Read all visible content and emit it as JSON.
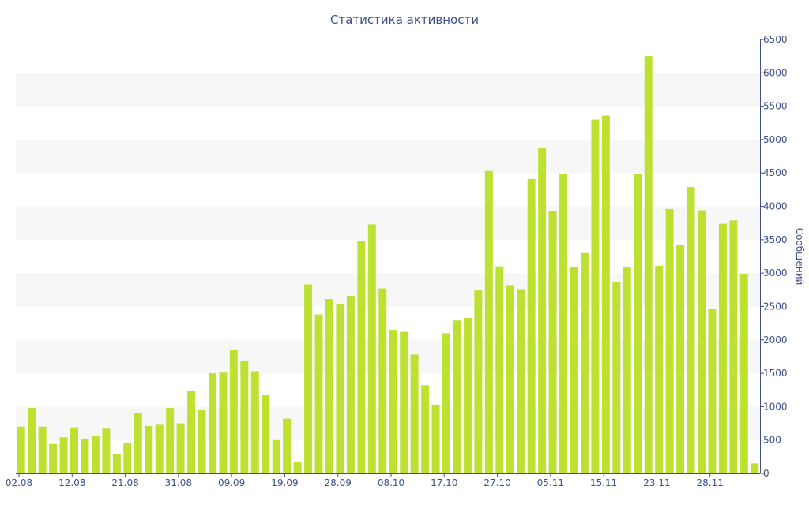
{
  "chart_data": {
    "type": "bar",
    "title": "Статистика активности",
    "ylabel": "Сообщений",
    "ylim": [
      0,
      6500
    ],
    "y_ticks": [
      0,
      500,
      1000,
      1500,
      2000,
      2500,
      3000,
      3500,
      4000,
      4500,
      5000,
      5500,
      6000,
      6500
    ],
    "y_axis_side": "right",
    "grid": "alternating horizontal bands",
    "x_tick_labels": [
      "02.08",
      "12.08",
      "21.08",
      "31.08",
      "09.09",
      "19.09",
      "28.09",
      "08.10",
      "17.10",
      "27.10",
      "05.11",
      "15.11",
      "23.11",
      "28.11"
    ],
    "values": [
      700,
      980,
      700,
      440,
      540,
      690,
      520,
      560,
      670,
      290,
      450,
      900,
      710,
      740,
      980,
      750,
      1240,
      950,
      1500,
      1510,
      1850,
      1680,
      1530,
      1170,
      510,
      820,
      170,
      2830,
      2380,
      2610,
      2540,
      2660,
      3480,
      3730,
      2770,
      2150,
      2120,
      1780,
      1320,
      1030,
      2100,
      2290,
      2330,
      2740,
      4530,
      3100,
      2820,
      2760,
      4410,
      4870,
      3930,
      4490,
      3090,
      3300,
      5300,
      5360,
      2860,
      3090,
      4480,
      6250,
      3110,
      3960,
      3420,
      4290,
      3940,
      2470,
      3740,
      3790,
      2990,
      150
    ],
    "colors": {
      "bar": "#bde130",
      "text": "#3e4f8b",
      "band": "#f7f7f7",
      "axis": "#3e4f8b"
    }
  }
}
